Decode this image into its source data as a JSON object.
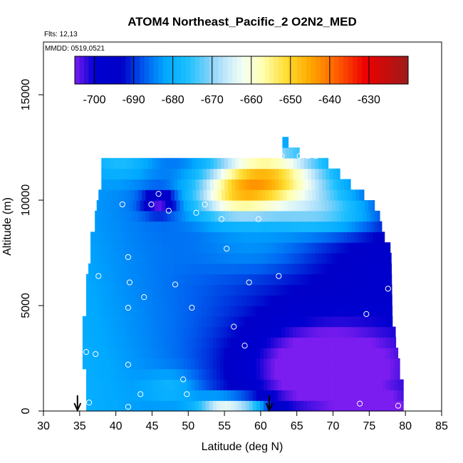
{
  "chart_data": {
    "type": "heatmap",
    "title": "ATOM4 Northeast_Pacific_2 O2N2_MED",
    "subtitle_flights": "Flts: 12,13",
    "subtitle_dates": "MMDD: 0519,0521",
    "xlabel": "Latitude (deg N)",
    "ylabel": "Altitude (m)",
    "xlim": [
      30,
      85
    ],
    "ylim": [
      0,
      17500
    ],
    "x_ticks": [
      30,
      35,
      40,
      45,
      50,
      55,
      60,
      65,
      70,
      75,
      80,
      85
    ],
    "y_ticks": [
      0,
      5000,
      10000,
      15000
    ],
    "grid": false,
    "colorbar": {
      "placement": "top-inside",
      "range": [
        -705,
        -620
      ],
      "tick_values": [
        -700,
        -690,
        -680,
        -670,
        -660,
        -650,
        -640,
        -630
      ],
      "tick_labels": [
        "-700",
        "-690",
        "-680",
        "-670",
        "-660",
        "-650",
        "-640",
        "-630"
      ]
    },
    "color_stops": [
      {
        "value": -705,
        "color": "#7b1cf0"
      },
      {
        "value": -700,
        "color": "#0000d0"
      },
      {
        "value": -693,
        "color": "#0000c8"
      },
      {
        "value": -687,
        "color": "#0060f0"
      },
      {
        "value": -682,
        "color": "#00a8ff"
      },
      {
        "value": -676,
        "color": "#1fc0ff"
      },
      {
        "value": -670,
        "color": "#8ed4f8"
      },
      {
        "value": -666,
        "color": "#c8ecfc"
      },
      {
        "value": -662,
        "color": "#f4fff0"
      },
      {
        "value": -657,
        "color": "#ffffb0"
      },
      {
        "value": -651,
        "color": "#ffdc30"
      },
      {
        "value": -645,
        "color": "#ffa800"
      },
      {
        "value": -638,
        "color": "#ff5c00"
      },
      {
        "value": -631,
        "color": "#ee0000"
      },
      {
        "value": -620,
        "color": "#9c1c1c"
      }
    ],
    "curtain": {
      "lat_range": [
        35.3,
        79.8
      ],
      "alt_step": 500,
      "lat_step": 0.5,
      "left_edge": [
        [
          0,
          35.9
        ],
        [
          2000,
          35.9
        ],
        [
          2100,
          35.4
        ],
        [
          4500,
          35.4
        ],
        [
          4600,
          35.9
        ],
        [
          6700,
          35.9
        ],
        [
          6800,
          36.5
        ],
        [
          8500,
          36.5
        ],
        [
          8600,
          37.1
        ],
        [
          9700,
          37.1
        ],
        [
          9800,
          37.6
        ],
        [
          10400,
          37.6
        ],
        [
          10500,
          38.0
        ],
        [
          12000,
          38.0
        ]
      ],
      "right_edge": [
        [
          0,
          79.7
        ],
        [
          1500,
          79.7
        ],
        [
          1600,
          79.2
        ],
        [
          2700,
          79.2
        ],
        [
          2800,
          78.7
        ],
        [
          3800,
          78.6
        ],
        [
          3900,
          78.2
        ],
        [
          7700,
          78.0
        ],
        [
          8000,
          77.3
        ],
        [
          8600,
          76.8
        ],
        [
          9500,
          76.3
        ],
        [
          10100,
          74.9
        ],
        [
          10500,
          73.2
        ],
        [
          11100,
          71.3
        ],
        [
          11600,
          70.1
        ],
        [
          12000,
          68.0
        ],
        [
          12300,
          64.8
        ],
        [
          12600,
          63.8
        ]
      ],
      "left_value": -680,
      "features": [
        {
          "lat": 48,
          "alt": 1100,
          "sigma_lat": 2.6,
          "sigma_alt": 550,
          "amp": 6
        },
        {
          "lat": 55,
          "alt": 300,
          "sigma_lat": 2.6,
          "sigma_alt": 280,
          "amp": 26
        },
        {
          "lat": 59,
          "alt": 300,
          "sigma_lat": 1.8,
          "sigma_alt": 280,
          "amp": 12
        },
        {
          "lat": 68,
          "alt": 2000,
          "sigma_lat": 8,
          "sigma_alt": 1700,
          "amp": -20
        },
        {
          "lat": 76,
          "alt": 300,
          "sigma_lat": 3,
          "sigma_alt": 320,
          "amp": -10
        },
        {
          "lat": 60,
          "alt": 11200,
          "sigma_lat": 5,
          "sigma_alt": 1000,
          "amp": 30
        },
        {
          "lat": 56,
          "alt": 10100,
          "sigma_lat": 4,
          "sigma_alt": 800,
          "amp": 22
        },
        {
          "lat": 66,
          "alt": 10800,
          "sigma_lat": 6,
          "sigma_alt": 1200,
          "amp": 18
        },
        {
          "lat": 70,
          "alt": 9300,
          "sigma_lat": 6,
          "sigma_alt": 700,
          "amp": 14
        },
        {
          "lat": 46,
          "alt": 9900,
          "sigma_lat": 1.6,
          "sigma_alt": 380,
          "amp": -20
        },
        {
          "lat": 41,
          "alt": 12000,
          "sigma_lat": 3,
          "sigma_alt": 700,
          "amp": 8
        },
        {
          "lat": 60,
          "alt": 7600,
          "sigma_lat": 6,
          "sigma_alt": 800,
          "amp": 6
        }
      ]
    },
    "flight_points": [
      {
        "lat": 62.9,
        "alt": 12100
      },
      {
        "lat": 65.4,
        "alt": 12100
      },
      {
        "lat": 66.5,
        "alt": 12100
      },
      {
        "lat": 67.6,
        "alt": 12100
      },
      {
        "lat": 45.9,
        "alt": 10300
      },
      {
        "lat": 40.9,
        "alt": 9800
      },
      {
        "lat": 44.9,
        "alt": 9800
      },
      {
        "lat": 52.3,
        "alt": 9800
      },
      {
        "lat": 47.3,
        "alt": 9500
      },
      {
        "lat": 51.1,
        "alt": 9400
      },
      {
        "lat": 54.6,
        "alt": 9100
      },
      {
        "lat": 59.7,
        "alt": 9100
      },
      {
        "lat": 55.3,
        "alt": 7700
      },
      {
        "lat": 41.7,
        "alt": 7300
      },
      {
        "lat": 37.6,
        "alt": 6400
      },
      {
        "lat": 62.5,
        "alt": 6400
      },
      {
        "lat": 41.9,
        "alt": 6100
      },
      {
        "lat": 48.2,
        "alt": 6000
      },
      {
        "lat": 58.4,
        "alt": 6100
      },
      {
        "lat": 77.6,
        "alt": 5800
      },
      {
        "lat": 43.9,
        "alt": 5400
      },
      {
        "lat": 41.7,
        "alt": 4900
      },
      {
        "lat": 50.5,
        "alt": 4900
      },
      {
        "lat": 35.5,
        "alt": 4700
      },
      {
        "lat": 74.6,
        "alt": 4600
      },
      {
        "lat": 56.3,
        "alt": 4000
      },
      {
        "lat": 57.8,
        "alt": 3100
      },
      {
        "lat": 35.9,
        "alt": 2800
      },
      {
        "lat": 37.2,
        "alt": 2700
      },
      {
        "lat": 41.7,
        "alt": 2200
      },
      {
        "lat": 49.3,
        "alt": 1500
      },
      {
        "lat": 43.4,
        "alt": 800
      },
      {
        "lat": 49.8,
        "alt": 800
      },
      {
        "lat": 36.3,
        "alt": 400
      },
      {
        "lat": 41.7,
        "alt": 200
      },
      {
        "lat": 73.7,
        "alt": 350
      },
      {
        "lat": 79.0,
        "alt": 250
      }
    ],
    "arrows": [
      {
        "lat": 34.7,
        "label": ""
      },
      {
        "lat": 61.2,
        "label": ""
      }
    ]
  }
}
